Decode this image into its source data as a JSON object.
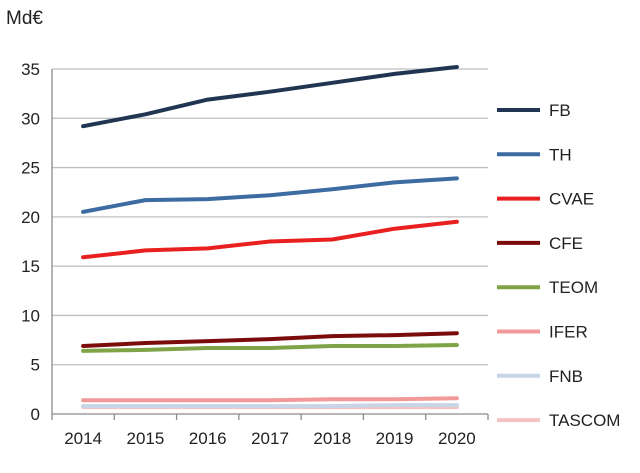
{
  "chart_data": {
    "type": "line",
    "title": "",
    "unit_label": "Md€",
    "xlabel": "",
    "ylabel": "",
    "categories": [
      "2014",
      "2015",
      "2016",
      "2017",
      "2018",
      "2019",
      "2020"
    ],
    "ylim": [
      0,
      35
    ],
    "yticks": [
      0,
      5,
      10,
      15,
      20,
      25,
      30,
      35
    ],
    "grid": true,
    "legend_position": "right",
    "series": [
      {
        "name": "FB",
        "color": "#1f3552",
        "values": [
          29.2,
          30.4,
          31.9,
          32.7,
          33.6,
          34.5,
          35.2
        ]
      },
      {
        "name": "TH",
        "color": "#3d6ca3",
        "values": [
          20.5,
          21.7,
          21.8,
          22.2,
          22.8,
          23.5,
          23.9
        ]
      },
      {
        "name": "CVAE",
        "color": "#e82020",
        "values": [
          15.9,
          16.6,
          16.8,
          17.5,
          17.7,
          18.8,
          19.5
        ]
      },
      {
        "name": "CFE",
        "color": "#7b0c0c",
        "values": [
          6.9,
          7.2,
          7.4,
          7.6,
          7.9,
          8.0,
          8.2
        ]
      },
      {
        "name": "TEOM",
        "color": "#7ea447",
        "values": [
          6.4,
          6.5,
          6.7,
          6.7,
          6.9,
          6.9,
          7.0
        ]
      },
      {
        "name": "IFER",
        "color": "#f29a9a",
        "values": [
          1.4,
          1.4,
          1.4,
          1.4,
          1.5,
          1.5,
          1.6
        ]
      },
      {
        "name": "FNB",
        "color": "#c7d5e6",
        "values": [
          0.8,
          0.8,
          0.8,
          0.8,
          0.8,
          0.9,
          0.9
        ]
      },
      {
        "name": "TASCOM",
        "color": "#f4c3c3",
        "values": [
          0.7,
          0.7,
          0.7,
          0.7,
          0.7,
          0.7,
          0.7
        ]
      }
    ]
  }
}
